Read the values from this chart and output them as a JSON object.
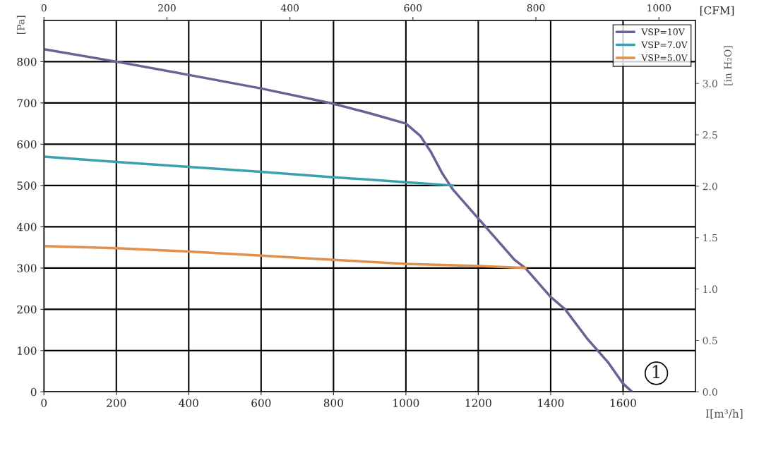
{
  "chart_data": {
    "type": "line",
    "xlabel": "I[m³/h]",
    "ylabel": "[Pa]",
    "x2label": "[CFM]",
    "y2label": "[in H₂O]",
    "xlim": [
      0,
      1800
    ],
    "xticks": [
      0,
      200,
      400,
      600,
      800,
      1000,
      1200,
      1400,
      1600
    ],
    "ylim": [
      0,
      900
    ],
    "yticks": [
      0,
      100,
      200,
      300,
      400,
      500,
      600,
      700,
      800
    ],
    "x2lim": [
      0,
      1059.4
    ],
    "x2ticks": [
      0,
      200,
      400,
      600,
      800,
      1000
    ],
    "y2lim": [
      0,
      3.613
    ],
    "y2ticks": [
      {
        "value": 0,
        "label": "0.0"
      },
      {
        "value": 0.5,
        "label": "0.5"
      },
      {
        "value": 1,
        "label": "1.0"
      },
      {
        "value": 1.5,
        "label": "1.5"
      },
      {
        "value": 2,
        "label": "2.0"
      },
      {
        "value": 2.5,
        "label": "2.5"
      },
      {
        "value": 3,
        "label": "3.0"
      }
    ],
    "grid": true,
    "legend": "top right",
    "marker": "none",
    "line_style": "solid",
    "series": [
      {
        "name": "VSP=10V",
        "color": "#6e5f94",
        "x": [
          0,
          200,
          400,
          600,
          800,
          900,
          1000,
          1040,
          1070,
          1100,
          1130,
          1200,
          1250,
          1300,
          1330,
          1400,
          1440,
          1500,
          1560,
          1600,
          1625
        ],
        "values": [
          830,
          800,
          768,
          735,
          698,
          675,
          650,
          620,
          580,
          530,
          490,
          420,
          370,
          320,
          300,
          230,
          200,
          130,
          70,
          20,
          0
        ]
      },
      {
        "name": "VSP=7.0V",
        "color": "#3aa0b0",
        "x": [
          0,
          200,
          400,
          600,
          800,
          1000,
          1130
        ],
        "values": [
          570,
          557,
          545,
          533,
          520,
          508,
          500
        ]
      },
      {
        "name": "VSP=5.0V",
        "color": "#e0904a",
        "x": [
          0,
          200,
          400,
          600,
          800,
          1000,
          1200,
          1330
        ],
        "values": [
          353,
          348,
          340,
          330,
          320,
          310,
          305,
          300
        ]
      }
    ],
    "annotations": [
      "1"
    ]
  }
}
